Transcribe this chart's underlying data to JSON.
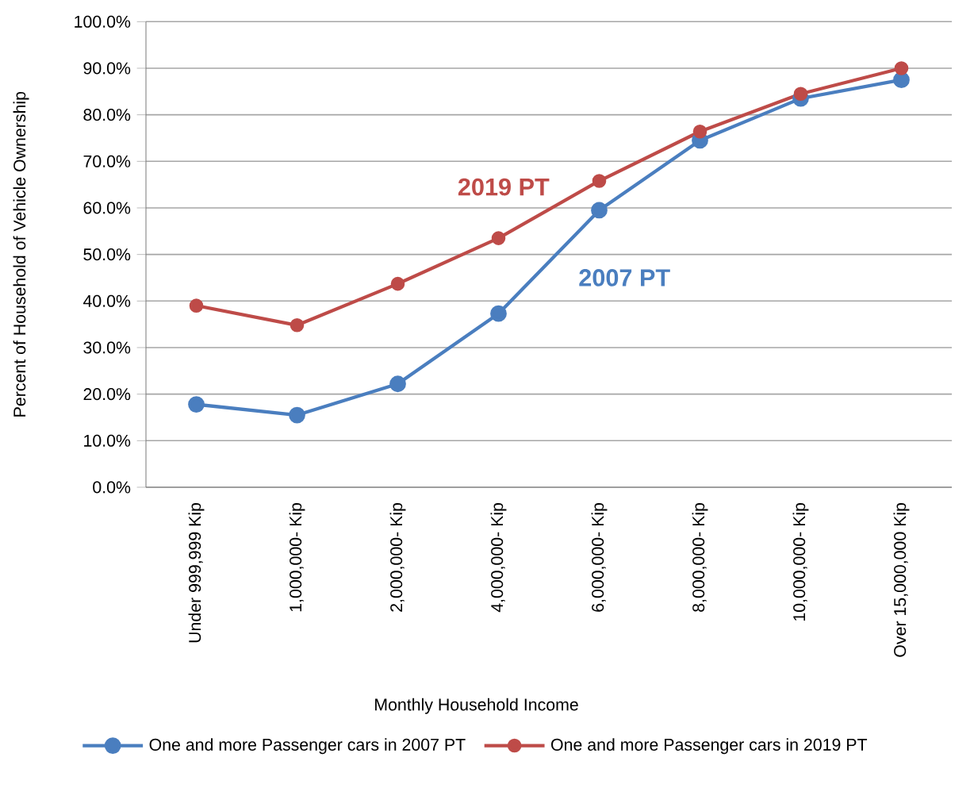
{
  "chart_data": {
    "type": "line",
    "categories": [
      "Under 999,999 Kip",
      "1,000,000- Kip",
      "2,000,000- Kip",
      "4,000,000- Kip",
      "6,000,000- Kip",
      "8,000,000- Kip",
      "10,000,000- Kip",
      "Over 15,000,000 Kip"
    ],
    "series": [
      {
        "name": "One and more Passenger cars in 2007 PT",
        "color": "#4a7ebf",
        "values": [
          17.8,
          15.5,
          22.2,
          37.3,
          59.5,
          74.5,
          83.5,
          87.5
        ]
      },
      {
        "name": "One and more Passenger cars in 2019 PT",
        "color": "#be4b48",
        "values": [
          39.0,
          34.8,
          43.7,
          53.5,
          65.8,
          76.4,
          84.5,
          90.0
        ]
      }
    ],
    "xlabel": "Monthly Household Income",
    "ylabel": "Percent of Household of Vehicle Ownership",
    "ylim": [
      0,
      100
    ],
    "yticks": [
      {
        "value": 0,
        "label": "0.0%"
      },
      {
        "value": 10,
        "label": "10.0%"
      },
      {
        "value": 20,
        "label": "20.0%"
      },
      {
        "value": 30,
        "label": "30.0%"
      },
      {
        "value": 40,
        "label": "40.0%"
      },
      {
        "value": 50,
        "label": "50.0%"
      },
      {
        "value": 60,
        "label": "60.0%"
      },
      {
        "value": 70,
        "label": "70.0%"
      },
      {
        "value": 80,
        "label": "80.0%"
      },
      {
        "value": 90,
        "label": "90.0%"
      },
      {
        "value": 100,
        "label": "100.0%"
      }
    ],
    "annotations": [
      "2007 PT",
      "2019 PT"
    ],
    "grid": "y",
    "legend": "bottom",
    "marker": "circle",
    "line_style": "solid"
  }
}
